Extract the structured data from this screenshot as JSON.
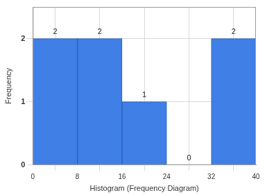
{
  "chart_data": {
    "type": "histogram",
    "bins": [
      0,
      8,
      16,
      24,
      32,
      40
    ],
    "values": [
      2,
      2,
      1,
      0,
      2
    ],
    "color": "#3f7fe6",
    "xlabel": "Histogram (Frequency Diagram)",
    "ylabel": "Frequency",
    "xlim": [
      0,
      40
    ],
    "xticks": [
      0,
      8,
      16,
      24,
      32,
      40
    ],
    "ylim": [
      0,
      2.5
    ],
    "yticks": [
      0,
      1,
      2
    ],
    "grid": true,
    "data_labels": true
  }
}
